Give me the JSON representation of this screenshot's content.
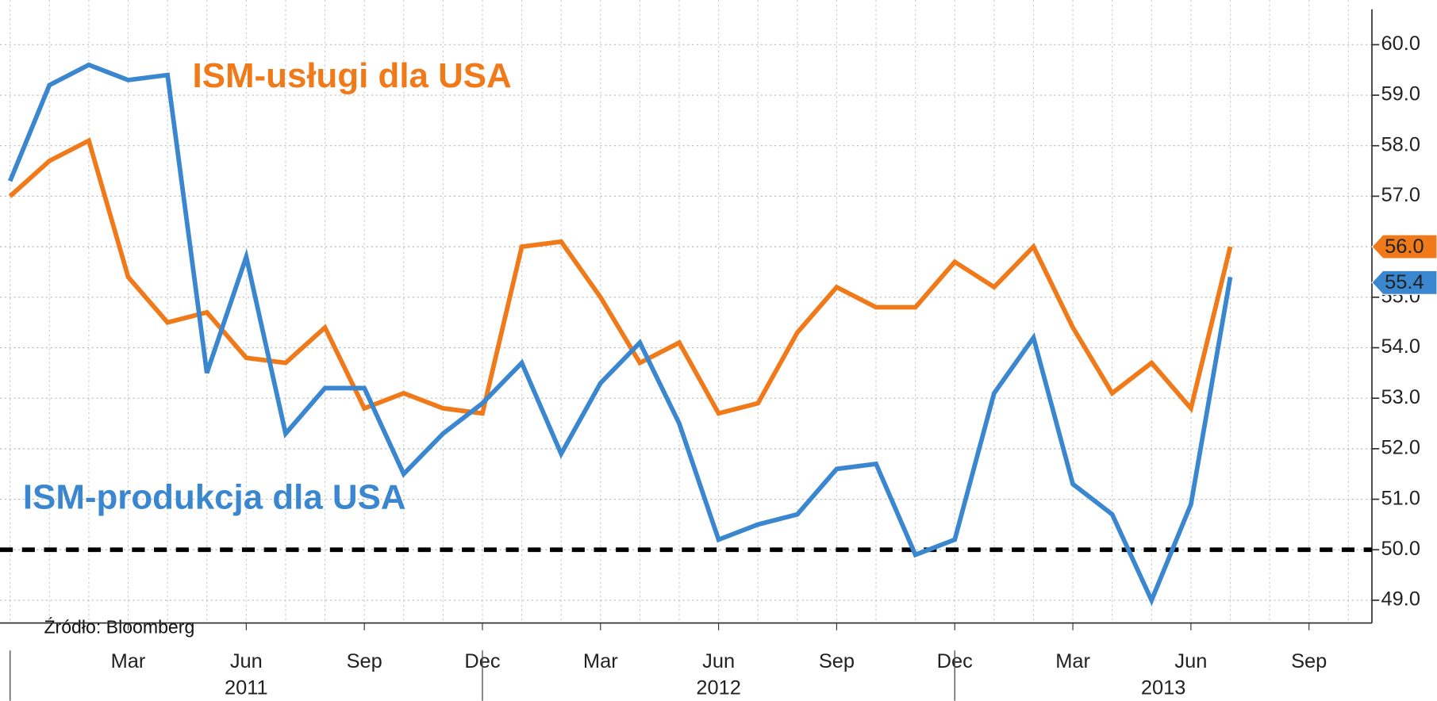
{
  "chart_data": {
    "type": "line",
    "categories": [
      null,
      null,
      null,
      "Mar",
      null,
      null,
      "Jun",
      null,
      null,
      "Sep",
      null,
      null,
      "Dec",
      null,
      null,
      "Mar",
      null,
      null,
      "Jun",
      null,
      null,
      "Sep",
      null,
      null,
      "Dec",
      null,
      null,
      "Mar",
      null,
      null,
      "Jun",
      null,
      null,
      "Sep",
      null
    ],
    "year_labels": [
      "2011",
      "2012",
      "2013"
    ],
    "series": [
      {
        "name": "ISM-usługi dla USA",
        "color": "#f07a1a",
        "values": [
          57.0,
          57.7,
          58.1,
          55.4,
          54.5,
          54.7,
          53.8,
          53.7,
          54.4,
          52.8,
          53.1,
          52.8,
          52.7,
          56.0,
          56.1,
          55.0,
          53.7,
          54.1,
          52.7,
          52.9,
          54.3,
          55.2,
          54.8,
          54.8,
          55.7,
          55.2,
          56.0,
          54.4,
          53.1,
          53.7,
          52.8,
          56.0,
          null,
          null,
          null
        ],
        "value_labels": [
          null,
          null,
          null,
          null,
          null,
          null,
          null,
          null,
          null,
          null,
          null,
          null,
          null,
          null,
          null,
          null,
          null,
          null,
          null,
          null,
          null,
          null,
          null,
          null,
          null,
          null,
          null,
          null,
          null,
          null,
          null,
          "56.0",
          null,
          null,
          null
        ]
      },
      {
        "name": "ISM-produkcja dla USA",
        "color": "#3a87d0",
        "values": [
          57.3,
          59.2,
          59.6,
          59.3,
          59.4,
          53.5,
          55.8,
          52.3,
          53.2,
          53.2,
          51.5,
          52.3,
          52.9,
          53.7,
          51.9,
          53.3,
          54.1,
          52.5,
          50.2,
          50.5,
          50.7,
          51.6,
          51.7,
          49.9,
          50.2,
          53.1,
          54.2,
          51.3,
          50.7,
          49.0,
          50.9,
          55.4,
          null,
          null,
          null
        ],
        "value_labels": [
          null,
          null,
          null,
          null,
          null,
          null,
          null,
          null,
          null,
          null,
          null,
          null,
          null,
          null,
          null,
          null,
          null,
          null,
          null,
          null,
          null,
          null,
          null,
          null,
          null,
          null,
          null,
          null,
          null,
          null,
          null,
          "55.4",
          null,
          null,
          null
        ]
      }
    ],
    "ylim": [
      48.55,
      60.7
    ],
    "yticks": [
      {
        "value": 49,
        "label": "49.0"
      },
      {
        "value": 50,
        "label": "50.0"
      },
      {
        "value": 51,
        "label": "51.0"
      },
      {
        "value": 52,
        "label": "52.0"
      },
      {
        "value": 53,
        "label": "53.0"
      },
      {
        "value": 54,
        "label": "54.0"
      },
      {
        "value": 55,
        "label": "55.0"
      },
      {
        "value": 56,
        "label": "56.0"
      },
      {
        "value": 57,
        "label": "57.0"
      },
      {
        "value": 58,
        "label": "58.0"
      },
      {
        "value": 59,
        "label": "59.0"
      },
      {
        "value": 60,
        "label": "60.0"
      }
    ],
    "reference_line": 50,
    "grid": true,
    "source": "Źródło: Bloomberg"
  }
}
